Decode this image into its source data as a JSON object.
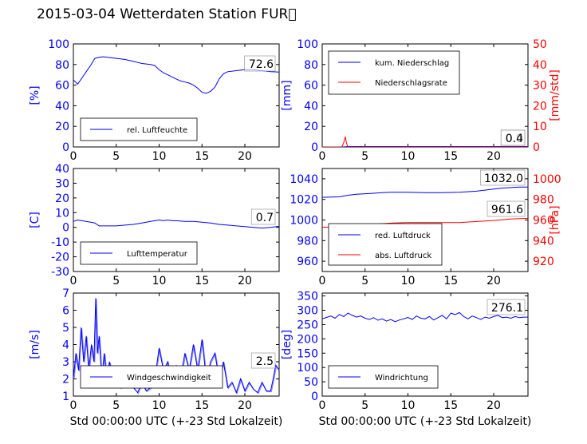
{
  "figure": {
    "title": "2015-03-04 Wetterdaten Station FUR\u0000",
    "xlabel": "Std 00:00:00 UTC (+-23 Std Lokalzeit)"
  },
  "colors": {
    "primary": "#0000ff",
    "secondary": "#ff0000",
    "light": "#8080ff"
  },
  "chart_data": [
    {
      "id": "humidity",
      "type": "line",
      "ylabel": "[%]",
      "ylim": [
        0,
        100
      ],
      "yticks": [
        0,
        20,
        40,
        60,
        80,
        100
      ],
      "xlim": [
        0,
        24
      ],
      "xticks": [
        0,
        5,
        10,
        15,
        20
      ],
      "last_value": "72.6",
      "series": [
        {
          "name": "rel. Luftfeuchte",
          "color": "#0000ff",
          "x": [
            0,
            0.5,
            1,
            1.5,
            2,
            2.5,
            3,
            3.5,
            4,
            5,
            6,
            7,
            7.5,
            8,
            9,
            9.5,
            10,
            10.5,
            11,
            11.5,
            12,
            12.5,
            13,
            13.5,
            14,
            14.5,
            15,
            15.5,
            16,
            16.5,
            17,
            17.5,
            18,
            19,
            20,
            21,
            22,
            23,
            24
          ],
          "y": [
            65,
            61,
            67,
            73,
            79,
            86,
            87,
            87.5,
            87,
            86,
            85,
            83,
            82,
            81,
            80,
            79,
            75,
            72,
            70,
            68,
            66,
            64,
            63,
            62,
            60,
            57,
            53,
            52,
            54,
            58,
            66,
            71,
            73,
            74,
            75,
            75,
            74,
            73,
            72.6
          ]
        }
      ]
    },
    {
      "id": "precipitation",
      "type": "line",
      "ylabel": "[mm]",
      "ylim": [
        0,
        100
      ],
      "yticks": [
        0,
        20,
        40,
        60,
        80,
        100
      ],
      "y2label": "[mm/std]",
      "y2lim": [
        0,
        50
      ],
      "y2ticks": [
        0,
        10,
        20,
        30,
        40,
        50
      ],
      "xlim": [
        0,
        24
      ],
      "xticks": [
        0,
        5,
        10,
        15,
        20
      ],
      "last_value": "0.0",
      "last_value2": "0.4",
      "series": [
        {
          "name": "kum. Niederschlag",
          "axis": "left",
          "color": "#0000ff",
          "x": [
            0,
            2.5,
            3,
            24
          ],
          "y": [
            0,
            0,
            0.4,
            0.4
          ]
        },
        {
          "name": "Niederschlagsrate",
          "axis": "right",
          "color": "#ff0000",
          "x": [
            0,
            2.3,
            2.5,
            2.7,
            2.8,
            2.9,
            3.0,
            24
          ],
          "y": [
            0,
            0,
            2,
            5,
            2.5,
            1,
            0,
            0
          ]
        }
      ]
    },
    {
      "id": "temperature",
      "type": "line",
      "ylabel": "[C]",
      "ylim": [
        -30,
        40
      ],
      "yticks": [
        -30,
        -20,
        -10,
        0,
        10,
        20,
        30,
        40
      ],
      "xlim": [
        0,
        24
      ],
      "xticks": [
        0,
        5,
        10,
        15,
        20
      ],
      "last_value": "0.7",
      "series": [
        {
          "name": "Lufttemperatur",
          "color": "#0000ff",
          "x": [
            0,
            0.5,
            1,
            1.5,
            2,
            2.5,
            3,
            4,
            5,
            6,
            7,
            8,
            9,
            9.5,
            10,
            10.5,
            11,
            11.5,
            12,
            13,
            14,
            15,
            16,
            17,
            18,
            19,
            20,
            21,
            22,
            23,
            24
          ],
          "y": [
            4,
            5,
            4.5,
            4,
            3.5,
            3,
            1,
            1,
            1,
            1.5,
            2,
            3,
            4,
            4.5,
            5,
            4.5,
            5,
            4.5,
            4.5,
            4,
            4,
            3.5,
            3,
            2,
            1.5,
            1,
            0.5,
            0,
            -0.5,
            0,
            0.7
          ]
        }
      ]
    },
    {
      "id": "pressure",
      "type": "line",
      "ylabel": "",
      "ylim": [
        950,
        1050
      ],
      "yticks": [
        960,
        980,
        1000,
        1020,
        1040
      ],
      "y2label": "[hPa]",
      "y2lim": [
        910,
        1010
      ],
      "y2ticks": [
        920,
        940,
        960,
        980,
        1000
      ],
      "xlim": [
        0,
        24
      ],
      "xticks": [
        0,
        5,
        10,
        15,
        20
      ],
      "last_value": "1032.0",
      "last_value2": "961.6",
      "series": [
        {
          "name": "red. Luftdruck",
          "axis": "left",
          "color": "#0000ff",
          "x": [
            0,
            2,
            3,
            4,
            5,
            6,
            7,
            8,
            9,
            10,
            12,
            14,
            16,
            18,
            20,
            21,
            22,
            23,
            24
          ],
          "y": [
            1022,
            1022.5,
            1024,
            1025,
            1025.5,
            1026,
            1026.5,
            1027,
            1027,
            1027,
            1026.5,
            1026.5,
            1027,
            1028,
            1030,
            1031,
            1031.5,
            1032,
            1032
          ]
        },
        {
          "name": "abs. Luftdruck",
          "axis": "right",
          "color": "#ff0000",
          "x": [
            0,
            2,
            3,
            4,
            6,
            8,
            10,
            12,
            14,
            16,
            18,
            20,
            22,
            24
          ],
          "y": [
            953,
            953,
            954,
            955,
            956,
            957,
            957.5,
            957.5,
            957.5,
            957.5,
            958.5,
            959.5,
            961,
            961.6
          ]
        }
      ]
    },
    {
      "id": "windspeed",
      "type": "line",
      "ylabel": "[m/s]",
      "ylim": [
        1,
        7
      ],
      "yticks": [
        1,
        2,
        3,
        4,
        5,
        6,
        7
      ],
      "xlim": [
        0,
        24
      ],
      "xticks": [
        0,
        5,
        10,
        15,
        20
      ],
      "last_value": "2.5",
      "series": [
        {
          "name": "Windgeschwindigkeit",
          "color": "#0000ff",
          "x": [
            0,
            0.3,
            0.6,
            0.9,
            1.2,
            1.5,
            1.8,
            2.1,
            2.4,
            2.6,
            2.8,
            3.0,
            3.3,
            3.6,
            3.9,
            4.2,
            4.6,
            5.0,
            5.5,
            6.0,
            6.5,
            7.0,
            7.5,
            8.0,
            8.5,
            9.0,
            9.5,
            10.0,
            10.5,
            11.0,
            11.5,
            12.0,
            12.5,
            13.0,
            13.5,
            14.0,
            14.5,
            15.0,
            15.5,
            16.0,
            16.5,
            17.0,
            17.5,
            18.0,
            18.5,
            19.0,
            19.5,
            20.0,
            20.5,
            21.0,
            21.5,
            22.0,
            22.5,
            23.0,
            23.3,
            23.6,
            24.0
          ],
          "y": [
            2.0,
            3.5,
            2.5,
            5.0,
            3.0,
            4.5,
            2.5,
            4.0,
            3.0,
            6.7,
            3.5,
            4.5,
            2.0,
            3.5,
            2.0,
            3.0,
            2.0,
            2.5,
            1.5,
            2.0,
            2.5,
            1.5,
            1.2,
            1.8,
            1.3,
            1.5,
            2.0,
            3.8,
            2.5,
            3.0,
            1.5,
            2.8,
            2.0,
            3.5,
            2.5,
            4.0,
            2.5,
            4.3,
            2.0,
            3.0,
            3.5,
            2.0,
            3.0,
            1.5,
            1.8,
            1.2,
            2.0,
            1.3,
            1.8,
            1.4,
            1.2,
            1.8,
            1.3,
            1.3,
            2.0,
            2.8,
            2.5
          ]
        }
      ]
    },
    {
      "id": "winddirection",
      "type": "line",
      "ylabel": "[deg]",
      "ylim": [
        0,
        360
      ],
      "yticks": [
        0,
        50,
        100,
        150,
        200,
        250,
        300,
        350
      ],
      "xlim": [
        0,
        24
      ],
      "xticks": [
        0,
        5,
        10,
        15,
        20
      ],
      "last_value": "276.1",
      "series": [
        {
          "name": "Windrichtung",
          "color": "#0000ff",
          "x": [
            0,
            0.5,
            1,
            1.5,
            2,
            2.5,
            3,
            3.5,
            4,
            4.5,
            5,
            5.5,
            6,
            6.5,
            7,
            7.5,
            8,
            8.5,
            9,
            9.5,
            10,
            10.5,
            11,
            11.5,
            12,
            12.5,
            13,
            13.5,
            14,
            14.5,
            15,
            15.5,
            16,
            16.5,
            17,
            17.5,
            18,
            18.5,
            19,
            19.5,
            20,
            20.5,
            21,
            21.5,
            22,
            22.5,
            23,
            23.5,
            24
          ],
          "y": [
            270,
            275,
            280,
            272,
            285,
            278,
            290,
            282,
            276,
            280,
            272,
            268,
            274,
            265,
            270,
            262,
            268,
            260,
            266,
            270,
            275,
            268,
            280,
            272,
            270,
            278,
            266,
            274,
            282,
            270,
            290,
            285,
            292,
            278,
            270,
            280,
            274,
            268,
            276,
            272,
            278,
            282,
            274,
            276,
            272,
            278,
            274,
            276,
            276.1
          ]
        }
      ]
    }
  ]
}
